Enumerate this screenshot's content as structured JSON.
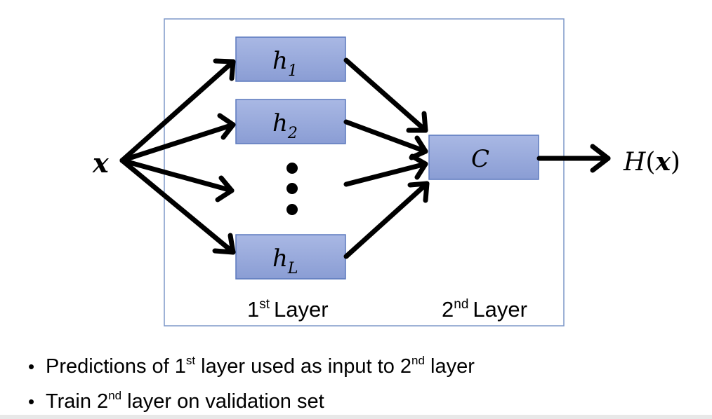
{
  "diagram": {
    "input_label": "x",
    "output_label": "H(x)",
    "output_func": "H",
    "output_arg": "x",
    "combiner_label": "C",
    "learners": [
      {
        "base": "h",
        "subscript": "1"
      },
      {
        "base": "h",
        "subscript": "2"
      },
      {
        "base": "h",
        "subscript": "L"
      }
    ],
    "layer1": {
      "num": "1",
      "sup": "st",
      "word": "Layer"
    },
    "layer2": {
      "num": "2",
      "sup": "nd",
      "word": "Layer"
    },
    "colors": {
      "box_fill": "#98a9db",
      "box_border": "#5b78bd",
      "frame_border": "#7e98c8",
      "arrow": "#000000"
    }
  },
  "bullets": [
    {
      "pre": "Predictions of 1",
      "sup1": "st",
      "mid": " layer used as input to 2",
      "sup2": "nd",
      "post": " layer"
    },
    {
      "pre": "Train 2",
      "sup1": "nd",
      "post": " layer on validation set"
    }
  ]
}
